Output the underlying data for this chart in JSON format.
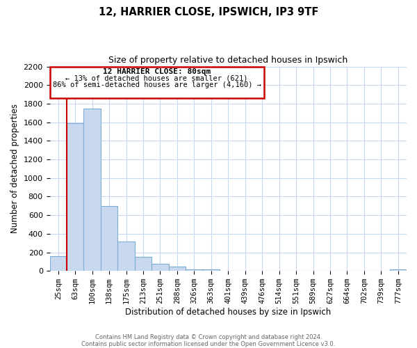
{
  "title": "12, HARRIER CLOSE, IPSWICH, IP3 9TF",
  "subtitle": "Size of property relative to detached houses in Ipswich",
  "xlabel": "Distribution of detached houses by size in Ipswich",
  "ylabel": "Number of detached properties",
  "bar_labels": [
    "25sqm",
    "63sqm",
    "100sqm",
    "138sqm",
    "175sqm",
    "213sqm",
    "251sqm",
    "288sqm",
    "326sqm",
    "363sqm",
    "401sqm",
    "439sqm",
    "476sqm",
    "514sqm",
    "551sqm",
    "589sqm",
    "627sqm",
    "664sqm",
    "702sqm",
    "739sqm",
    "777sqm"
  ],
  "bar_values": [
    160,
    1590,
    1750,
    700,
    315,
    155,
    80,
    45,
    20,
    15,
    0,
    0,
    0,
    0,
    0,
    0,
    0,
    0,
    0,
    0,
    15
  ],
  "bar_color": "#c8d8ee",
  "bar_edge_color": "#7bafd4",
  "vline_color": "#cc0000",
  "annotation_title": "12 HARRIER CLOSE: 80sqm",
  "annotation_line1": "← 13% of detached houses are smaller (621)",
  "annotation_line2": "86% of semi-detached houses are larger (4,160) →",
  "ylim": [
    0,
    2200
  ],
  "yticks": [
    0,
    200,
    400,
    600,
    800,
    1000,
    1200,
    1400,
    1600,
    1800,
    2000,
    2200
  ],
  "footnote1": "Contains HM Land Registry data © Crown copyright and database right 2024.",
  "footnote2": "Contains public sector information licensed under the Open Government Licence v3.0.",
  "bg_color": "#ffffff",
  "grid_color": "#c8d8ee"
}
